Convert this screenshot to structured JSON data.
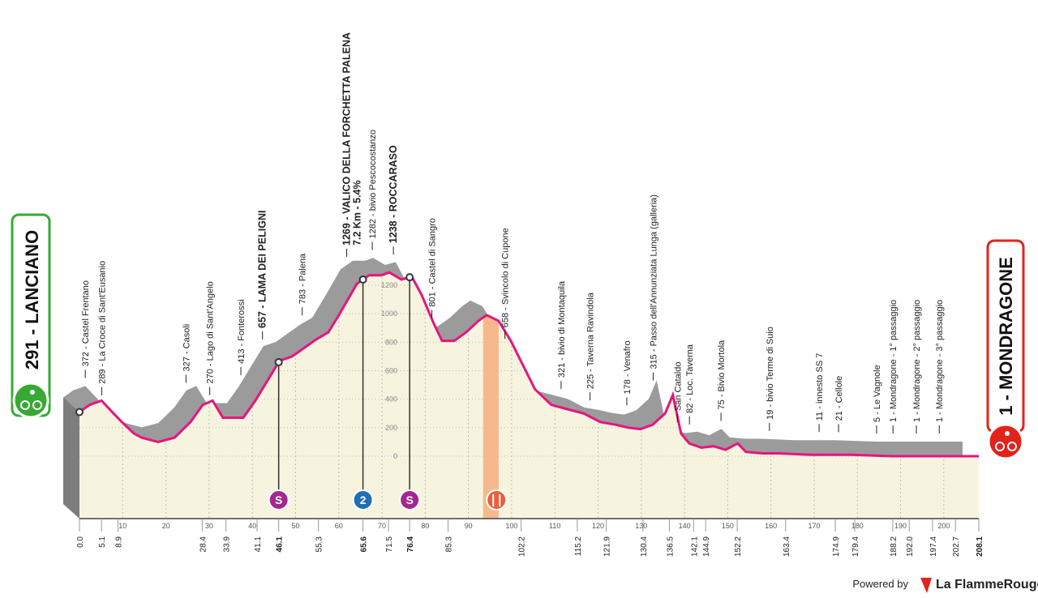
{
  "chart_data": {
    "type": "area",
    "start": "291 - LANCIANO",
    "finish": "1 - MONDRAGONE",
    "x": [
      0.0,
      2.3,
      5.1,
      7.9,
      9.8,
      12.6,
      14.4,
      18.2,
      22.0,
      25.7,
      28.5,
      30.8,
      33.2,
      37.9,
      40.7,
      43.5,
      46.3,
      49.2,
      52.0,
      54.8,
      57.6,
      60.4,
      64.2,
      67.0,
      69.8,
      71.7,
      74.5,
      76.9,
      79.2,
      82.0,
      83.9,
      86.7,
      89.5,
      92.3,
      94.2,
      97.0,
      99.8,
      102.6,
      105.4,
      109.2,
      112.9,
      116.7,
      120.5,
      124.2,
      127.0,
      129.8,
      132.6,
      135.5,
      137.3,
      139.2,
      141.1,
      143.9,
      146.7,
      149.5,
      152.3,
      154.2,
      158.0,
      161.7,
      169.2,
      178.6,
      188.0,
      197.4,
      208.1
    ],
    "values": [
      310,
      360,
      390,
      300,
      240,
      160,
      130,
      100,
      130,
      240,
      360,
      390,
      270,
      270,
      390,
      530,
      670,
      700,
      760,
      820,
      870,
      1010,
      1210,
      1270,
      1270,
      1290,
      1240,
      1260,
      1130,
      930,
      810,
      810,
      870,
      950,
      990,
      950,
      810,
      640,
      470,
      360,
      330,
      300,
      240,
      220,
      200,
      190,
      220,
      300,
      430,
      160,
      90,
      60,
      70,
      45,
      90,
      30,
      20,
      20,
      10,
      10,
      0,
      0,
      0
    ],
    "color": "#e5157f",
    "ridge_color": "#9b9b9b",
    "fill_color": "#f6f4df",
    "xlim": [
      0,
      208.1
    ],
    "ylim": [
      0,
      1200
    ],
    "xticks": [
      10,
      20,
      30,
      40,
      50,
      60,
      70,
      80,
      90,
      100,
      110,
      120,
      130,
      140,
      150,
      160,
      170,
      180,
      190,
      200
    ],
    "yticks": [
      0,
      200,
      400,
      600,
      800,
      1000,
      1200
    ],
    "grid": true,
    "distance_markers": [
      {
        "value": 0,
        "label": "0.0"
      },
      5.1,
      8.9,
      28.4,
      33.9,
      41.1,
      46.1,
      55.3,
      65.6,
      71.5,
      76.4,
      85.3,
      102.2,
      115.2,
      121.9,
      130.4,
      136.5,
      142.1,
      144.9,
      152.2,
      163.4,
      174.9,
      179.4,
      188.2,
      {
        "value": 192,
        "label": "192.0"
      },
      197.4,
      202.7,
      208.1
    ],
    "waypoints": [
      {
        "name": "372 - Castel Frentano",
        "km": 5.1
      },
      {
        "name": "289 - La Croce di Sant'Eusanio",
        "km": 8.9
      },
      {
        "name": "327 - Casoli",
        "km": 28.4
      },
      {
        "name": "270 - Lago di Sant'Angelo",
        "km": 33.9
      },
      {
        "name": "413 - Fonterossi",
        "km": 41.1
      },
      {
        "name": "657 - LAMA DEI PELIGNI",
        "km": 46.1,
        "bold": true
      },
      {
        "name": "783 - Palena",
        "km": 55.3
      },
      {
        "name": "1269 - VALICO DELLA FORCHETTA PALENA",
        "km": 65.6,
        "bold": true,
        "detail": "7.2 Km - 5.4%"
      },
      {
        "name": "1282 - bivio Pescocostanzo",
        "km": 71.5
      },
      {
        "name": "1238 - ROCCARASO",
        "km": 76.4,
        "bold": true
      },
      {
        "name": "801 - Castel di Sangro",
        "km": 85.3
      },
      {
        "name": "658 - Svincolo di Cupone",
        "km": 102.2
      },
      {
        "name": "321 - bivio di Montaquila",
        "km": 115.2
      },
      {
        "name": "225 - Taverna Ravindola",
        "km": 121.9
      },
      {
        "name": "178 - Venafro",
        "km": 130.4
      },
      {
        "name": "315 - Passo dell'Annunziata Lunga (galleria)",
        "km": 136.5
      },
      {
        "name": "San Cataldo",
        "km": 142.1
      },
      {
        "name": "82 - Loc. Taverna",
        "km": 144.9
      },
      {
        "name": "75 - Bivio Mortola",
        "km": 152.2
      },
      {
        "name": "19 - bivio Terme di Suio",
        "km": 163.4
      },
      {
        "name": "11 - innesto SS 7",
        "km": 174.9
      },
      {
        "name": "21 - Cellole",
        "km": 179.4
      },
      {
        "name": "5 - Le Vagnole",
        "km": 188.2
      },
      {
        "name": "1 - Mondragone - 1° passaggio",
        "km": 192.0
      },
      {
        "name": "1 - Mondragone - 2° passaggio",
        "km": 197.4
      },
      {
        "name": "1 - Mondragone - 3° passaggio",
        "km": 202.7
      }
    ],
    "markers": [
      {
        "type": "sprint",
        "label": "S",
        "km": 46.1,
        "color": "#a4268f"
      },
      {
        "type": "kom",
        "label": "2",
        "km": 65.6,
        "color": "#1f6fb5"
      },
      {
        "type": "sprint",
        "label": "S",
        "km": 76.4,
        "color": "#a4268f"
      },
      {
        "type": "feed",
        "km": 96.5,
        "color": "#e8603c"
      }
    ],
    "feed_zone": [
      93.4,
      97.0
    ],
    "footer": {
      "powered": "Powered by",
      "brand": "La FlammeRouge"
    }
  }
}
